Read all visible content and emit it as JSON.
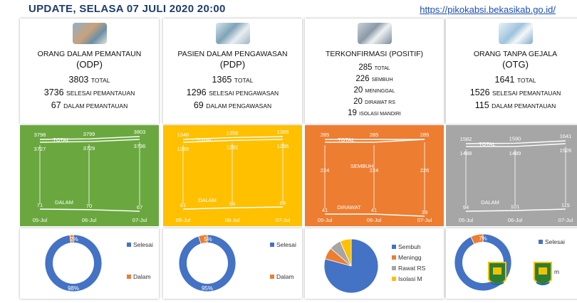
{
  "header": {
    "title": "UPDATE,  SELASA 07 JULI 2020    20:00",
    "url": "https://pikokabsi.bekasikab.go.id/"
  },
  "colors": {
    "odp": "#6aa83f",
    "pdp": "#ffc000",
    "pos": "#ed7d31",
    "otg": "#a6a6a6",
    "donut_blue": "#4472c4",
    "donut_orange": "#ed7d31",
    "donut_gray": "#a5a5a5",
    "donut_yellow": "#ffc000"
  },
  "odp": {
    "photo": "patients-photo",
    "title": "ORANG DALAM PEMANTAUN",
    "abbr": "(ODP)",
    "total_value": "3803",
    "total_label": "TOTAL",
    "done_value": "3736",
    "done_label": "SELESAI PEMANTAUAN",
    "active_value": "67",
    "active_label": "DALAM PEMANTAUAN"
  },
  "pdp": {
    "photo": "hospital-photo",
    "title": "PASIEN DALAM PENGAWASAN",
    "abbr": "(PDP)",
    "total_value": "1365",
    "total_label": "TOTAL",
    "done_value": "1296",
    "done_label": "SELESAI PENGAWASAN",
    "active_value": "69",
    "active_label": "DALAM PENGAWASAN"
  },
  "pos": {
    "photo": "icu-photo",
    "title": "TERKONFIRMASI (POSITIF)",
    "total_value": "285",
    "total_label": "TOTAL",
    "recovered_value": "226",
    "recovered_label": "SEMBUH",
    "died_value": "20",
    "died_label": "MENINGGAL",
    "hosp_value": "20",
    "hosp_label": "DIRAWAT RS",
    "iso_value": "19",
    "iso_label": "ISOLASI MANDIRI"
  },
  "otg": {
    "photo": "medics-photo",
    "title": "ORANG TANPA GEJALA",
    "abbr": "(OTG)",
    "total_value": "1641",
    "total_label": "TOTAL",
    "done_value": "1526",
    "done_label": "SELESAI PEMANTAUAN",
    "active_value": "115",
    "active_label": "DALAM PEMANTAUAN"
  },
  "chart_data": [
    {
      "type": "line",
      "categories": [
        "05-Jul",
        "06-Jul",
        "07-Jul"
      ],
      "series": [
        {
          "name": "TOTAL",
          "values": [
            3798,
            3799,
            3803
          ]
        },
        {
          "name": "",
          "values": [
            3727,
            3729,
            3736
          ]
        },
        {
          "name": "DALAM",
          "values": [
            71,
            70,
            67
          ]
        }
      ]
    },
    {
      "type": "line",
      "categories": [
        "05-Jul",
        "06-Jul",
        "07-Jul"
      ],
      "series": [
        {
          "name": "TOTAL",
          "values": [
            1346,
            1358,
            1365
          ]
        },
        {
          "name": "",
          "values": [
            1285,
            1292,
            1296
          ]
        },
        {
          "name": "DALAM",
          "values": [
            61,
            66,
            69
          ]
        }
      ]
    },
    {
      "type": "line",
      "categories": [
        "05-Jul",
        "06-Jul",
        "07-Jul"
      ],
      "series": [
        {
          "name": "TOTAL",
          "values": [
            285,
            285,
            285
          ]
        },
        {
          "name": "SEMBUH",
          "values": [
            224,
            224,
            226
          ]
        },
        {
          "name": "DIRAWAT",
          "values": [
            41,
            41,
            39
          ]
        }
      ]
    },
    {
      "type": "line",
      "categories": [
        "05-Jul",
        "06-Jul",
        "07-Jul"
      ],
      "series": [
        {
          "name": "TOTAL",
          "values": [
            1582,
            1590,
            1641
          ]
        },
        {
          "name": "",
          "values": [
            1488,
            1489,
            1526
          ]
        },
        {
          "name": "DALAM",
          "values": [
            94,
            101,
            115
          ]
        }
      ]
    },
    {
      "type": "pie",
      "labels": [
        "Selesai",
        "Dalam"
      ],
      "values": [
        98,
        2
      ],
      "value_labels": [
        "98%",
        "2%"
      ]
    },
    {
      "type": "pie",
      "labels": [
        "Selesai",
        "Dalam"
      ],
      "values": [
        95,
        5
      ],
      "value_labels": [
        "95%",
        "5%"
      ]
    },
    {
      "type": "pie",
      "labels": [
        "Sembuh",
        "Meninggal",
        "Rawat RS",
        "Isolasi M"
      ],
      "legend_labels": [
        "Sembuh",
        "Meningg",
        "Rawat RS",
        "Isolasi M"
      ],
      "values": [
        226,
        20,
        20,
        19
      ]
    },
    {
      "type": "pie",
      "labels": [
        "Selesai",
        "Dalam"
      ],
      "values": [
        93,
        7
      ],
      "value_labels": [
        "7%"
      ],
      "legend_labels": [
        "Selesai",
        "m"
      ]
    }
  ]
}
